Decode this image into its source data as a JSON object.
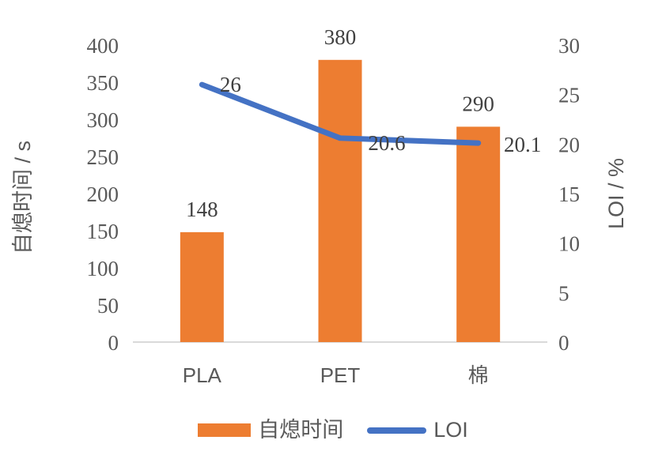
{
  "page": {
    "background": "#ffffff"
  },
  "chart_data": {
    "type": "combo",
    "categories": [
      "PLA",
      "PET",
      "棉"
    ],
    "series": [
      {
        "name": "自熄时间",
        "chart_type": "bar",
        "axis": "left",
        "color": "#ED7D31",
        "values": [
          148,
          380,
          290
        ],
        "data_labels": [
          "148",
          "380",
          "290"
        ]
      },
      {
        "name": "LOI",
        "chart_type": "line",
        "axis": "right",
        "color": "#4472C4",
        "values": [
          26,
          20.6,
          20.1
        ],
        "data_labels": [
          "26",
          "20.6",
          "20.1"
        ]
      }
    ],
    "left_axis": {
      "title": "自熄时间 / s",
      "min": 0,
      "max": 400,
      "step": 50,
      "ticks": [
        "400",
        "350",
        "300",
        "250",
        "200",
        "150",
        "100",
        "50",
        "0"
      ]
    },
    "right_axis": {
      "title": "LOI / %",
      "min": 0,
      "max": 30,
      "step": 5,
      "ticks": [
        "30",
        "25",
        "20",
        "15",
        "10",
        "5",
        "0"
      ]
    },
    "legend": {
      "position": "bottom",
      "items": [
        {
          "label": "自熄时间",
          "swatch": "bar",
          "color": "#ED7D31"
        },
        {
          "label": "LOI",
          "swatch": "line",
          "color": "#4472C4"
        }
      ]
    },
    "styles": {
      "axis_line_color": "#D9D9D9",
      "tick_color": "#595959",
      "data_label_color": "#404040",
      "category_color": "#595959",
      "axis_title_color": "#595959"
    },
    "grid": false
  }
}
